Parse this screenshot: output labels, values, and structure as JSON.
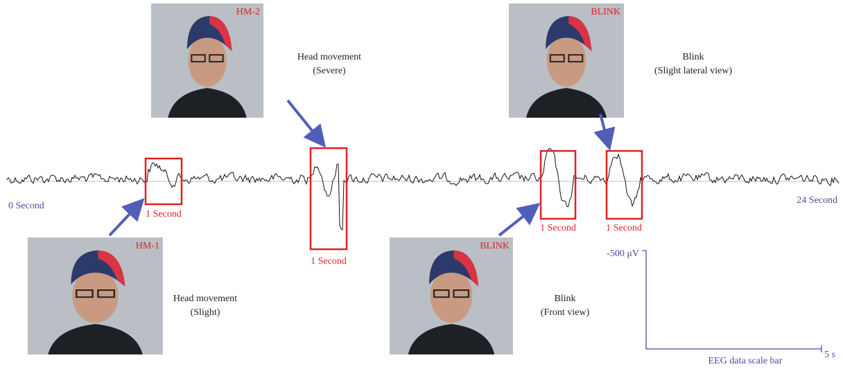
{
  "photos": [
    {
      "label": "HM-2",
      "caption": [
        "Head movement",
        "(Severe)"
      ]
    },
    {
      "label": "BLINK",
      "caption": [
        "Blink",
        "(Slight lateral view)"
      ]
    },
    {
      "label": "HM-1",
      "caption": [
        "Head movement",
        "(Slight)"
      ]
    },
    {
      "label": "BLINK",
      "caption": [
        "Blink",
        "(Front view)"
      ]
    }
  ],
  "boxes": [
    "1 Second",
    "1 Second",
    "1 Second",
    "1 Second"
  ],
  "start_label": "0 Second",
  "end_label": "24 Second",
  "scale_bar": {
    "amplitude": "-500 μV",
    "time": "5 s",
    "title": "EEG data scale bar"
  }
}
